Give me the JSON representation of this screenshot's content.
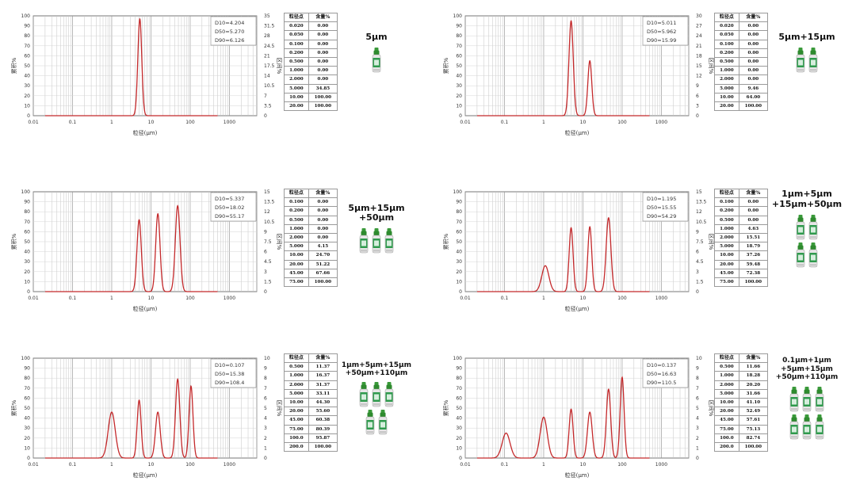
{
  "chart_data": [
    {
      "type": "line",
      "label": "5μm",
      "d_values": [
        "D10=4.204",
        "D50=5.270",
        "D90=6.126"
      ],
      "xlabel": "粒径(μm)",
      "ylabel_left": "累积%",
      "ylabel_right": "区间%",
      "x_scale": "log",
      "xlim": [
        0.01,
        5000
      ],
      "x_ticks": [
        "0.01",
        "0.1",
        "1",
        "10",
        "100",
        "1000"
      ],
      "ylim_left": [
        0,
        100
      ],
      "y_ticks_left": [
        "0",
        "10",
        "20",
        "30",
        "40",
        "50",
        "60",
        "70",
        "80",
        "90",
        "100"
      ],
      "y_ticks_right": [
        "0",
        "3.5",
        "7",
        "10.5",
        "14",
        "17.5",
        "21",
        "24.5",
        "28",
        "31.5",
        "35"
      ],
      "peaks": [
        {
          "center": 5.2,
          "height": 97,
          "width": 0.05
        }
      ],
      "table_header": [
        "粒径点",
        "含量%"
      ],
      "table": [
        [
          "0.020",
          "0.00"
        ],
        [
          "0.050",
          "0.00"
        ],
        [
          "0.100",
          "0.00"
        ],
        [
          "0.200",
          "0.00"
        ],
        [
          "0.500",
          "0.00"
        ],
        [
          "1.000",
          "0.00"
        ],
        [
          "2.000",
          "0.00"
        ],
        [
          "5.000",
          "34.85"
        ],
        [
          "10.00",
          "100.00"
        ],
        [
          "20.00",
          "100.00"
        ]
      ],
      "bottles": 1
    },
    {
      "type": "line",
      "label": "5μm+15μm",
      "d_values": [
        "D10=5.011",
        "D50=5.962",
        "D90=15.99"
      ],
      "xlabel": "粒径(μm)",
      "ylabel_left": "累积%",
      "ylabel_right": "区间%",
      "x_scale": "log",
      "xlim": [
        0.01,
        5000
      ],
      "x_ticks": [
        "0.01",
        "0.1",
        "1",
        "10",
        "100",
        "1000"
      ],
      "ylim_left": [
        0,
        100
      ],
      "y_ticks_left": [
        "0",
        "10",
        "20",
        "30",
        "40",
        "50",
        "60",
        "70",
        "80",
        "90",
        "100"
      ],
      "y_ticks_right": [
        "0",
        "3",
        "6",
        "9",
        "12",
        "15",
        "18",
        "21",
        "24",
        "27",
        "30"
      ],
      "peaks": [
        {
          "center": 5.0,
          "height": 95,
          "width": 0.055
        },
        {
          "center": 15.0,
          "height": 55,
          "width": 0.05
        }
      ],
      "table_header": [
        "粒径点",
        "含量%"
      ],
      "table": [
        [
          "0.020",
          "0.00"
        ],
        [
          "0.050",
          "0.00"
        ],
        [
          "0.100",
          "0.00"
        ],
        [
          "0.200",
          "0.00"
        ],
        [
          "0.500",
          "0.00"
        ],
        [
          "1.000",
          "0.00"
        ],
        [
          "2.000",
          "0.00"
        ],
        [
          "5.000",
          "9.46"
        ],
        [
          "10.00",
          "64.00"
        ],
        [
          "20.00",
          "100.00"
        ]
      ],
      "bottles": 2
    },
    {
      "type": "line",
      "label": "5μm+15μm\n+50μm",
      "d_values": [
        "D10=5.337",
        "D50=18.02",
        "D90=55.17"
      ],
      "xlabel": "粒径(μm)",
      "ylabel_left": "累积%",
      "ylabel_right": "区间%",
      "x_scale": "log",
      "xlim": [
        0.01,
        5000
      ],
      "x_ticks": [
        "0.01",
        "0.1",
        "1",
        "10",
        "100",
        "1000"
      ],
      "ylim_left": [
        0,
        100
      ],
      "y_ticks_left": [
        "0",
        "10",
        "20",
        "30",
        "40",
        "50",
        "60",
        "70",
        "80",
        "90",
        "100"
      ],
      "y_ticks_right": [
        "0",
        "1.5",
        "3",
        "4.5",
        "6",
        "7.5",
        "9",
        "10.5",
        "12",
        "13.5",
        "15"
      ],
      "peaks": [
        {
          "center": 5.0,
          "height": 72,
          "width": 0.055
        },
        {
          "center": 15.0,
          "height": 78,
          "width": 0.055
        },
        {
          "center": 48.0,
          "height": 86,
          "width": 0.06
        }
      ],
      "table_header": [
        "粒径点",
        "含量%"
      ],
      "table": [
        [
          "0.100",
          "0.00"
        ],
        [
          "0.200",
          "0.00"
        ],
        [
          "0.500",
          "0.00"
        ],
        [
          "1.000",
          "0.00"
        ],
        [
          "2.000",
          "0.00"
        ],
        [
          "5.000",
          "4.15"
        ],
        [
          "10.00",
          "24.70"
        ],
        [
          "20.00",
          "51.22"
        ],
        [
          "45.00",
          "67.66"
        ],
        [
          "75.00",
          "100.00"
        ]
      ],
      "bottles": 3
    },
    {
      "type": "line",
      "label": "1μm+5μm\n+15μm+50μm",
      "d_values": [
        "D10=1.195",
        "D50=15.55",
        "D90=54.29"
      ],
      "xlabel": "粒径(μm)",
      "ylabel_left": "累积%",
      "ylabel_right": "区间%",
      "x_scale": "log",
      "xlim": [
        0.01,
        5000
      ],
      "x_ticks": [
        "0.01",
        "0.1",
        "1",
        "10",
        "100",
        "1000"
      ],
      "ylim_left": [
        0,
        100
      ],
      "y_ticks_left": [
        "0",
        "10",
        "20",
        "30",
        "40",
        "50",
        "60",
        "70",
        "80",
        "90",
        "100"
      ],
      "y_ticks_right": [
        "0",
        "1.5",
        "3",
        "4.5",
        "6",
        "7.5",
        "9",
        "10.5",
        "12",
        "13.5",
        "15"
      ],
      "peaks": [
        {
          "center": 1.1,
          "height": 26,
          "width": 0.09
        },
        {
          "center": 5.0,
          "height": 64,
          "width": 0.05
        },
        {
          "center": 15.0,
          "height": 65,
          "width": 0.05
        },
        {
          "center": 45.0,
          "height": 74,
          "width": 0.06
        }
      ],
      "table_header": [
        "粒径点",
        "含量%"
      ],
      "table": [
        [
          "0.100",
          "0.00"
        ],
        [
          "0.200",
          "0.00"
        ],
        [
          "0.500",
          "0.00"
        ],
        [
          "1.000",
          "4.63"
        ],
        [
          "2.000",
          "15.51"
        ],
        [
          "5.000",
          "18.79"
        ],
        [
          "10.00",
          "37.26"
        ],
        [
          "20.00",
          "59.48"
        ],
        [
          "45.00",
          "72.38"
        ],
        [
          "75.00",
          "100.00"
        ]
      ],
      "bottles": 4
    },
    {
      "type": "line",
      "label": "1μm+5μm+15μm\n+50μm+110μm",
      "d_values": [
        "D10=0.107",
        "D50=15.38",
        "D90=108.4"
      ],
      "xlabel": "粒径(μm)",
      "ylabel_left": "累积%",
      "ylabel_right": "区间%",
      "x_scale": "log",
      "xlim": [
        0.01,
        5000
      ],
      "x_ticks": [
        "0.01",
        "0.1",
        "1",
        "10",
        "100",
        "1000"
      ],
      "ylim_left": [
        0,
        100
      ],
      "y_ticks_left": [
        "0",
        "10",
        "20",
        "30",
        "40",
        "50",
        "60",
        "70",
        "80",
        "90",
        "100"
      ],
      "y_ticks_right": [
        "0",
        "1",
        "2",
        "3",
        "4",
        "5",
        "6",
        "7",
        "8",
        "9",
        "10"
      ],
      "peaks": [
        {
          "center": 1.0,
          "height": 46,
          "width": 0.09
        },
        {
          "center": 5.0,
          "height": 58,
          "width": 0.05
        },
        {
          "center": 15.0,
          "height": 46,
          "width": 0.06
        },
        {
          "center": 48.0,
          "height": 79,
          "width": 0.055
        },
        {
          "center": 105.0,
          "height": 72,
          "width": 0.05
        }
      ],
      "table_header": [
        "粒径点",
        "含量%"
      ],
      "table": [
        [
          "0.500",
          "11.37"
        ],
        [
          "1.000",
          "16.37"
        ],
        [
          "2.000",
          "31.37"
        ],
        [
          "5.000",
          "33.11"
        ],
        [
          "10.00",
          "44.30"
        ],
        [
          "20.00",
          "55.60"
        ],
        [
          "45.00",
          "60.38"
        ],
        [
          "75.00",
          "80.39"
        ],
        [
          "100.0",
          "95.87"
        ],
        [
          "200.0",
          "100.00"
        ]
      ],
      "bottles": 5
    },
    {
      "type": "line",
      "label": "0.1μm+1μm\n+5μm+15μm\n+50μm+110μm",
      "d_values": [
        "D10=0.137",
        "D50=16.63",
        "D90=110.5"
      ],
      "xlabel": "粒径(μm)",
      "ylabel_left": "累积%",
      "ylabel_right": "区间%",
      "x_scale": "log",
      "xlim": [
        0.01,
        5000
      ],
      "x_ticks": [
        "0.01",
        "0.1",
        "1",
        "10",
        "100",
        "1000"
      ],
      "ylim_left": [
        0,
        100
      ],
      "y_ticks_left": [
        "0",
        "10",
        "20",
        "30",
        "40",
        "50",
        "60",
        "70",
        "80",
        "90",
        "100"
      ],
      "y_ticks_right": [
        "0",
        "1",
        "2",
        "3",
        "4",
        "5",
        "6",
        "7",
        "8",
        "9",
        "10"
      ],
      "peaks": [
        {
          "center": 0.11,
          "height": 25,
          "width": 0.1
        },
        {
          "center": 1.0,
          "height": 41,
          "width": 0.09
        },
        {
          "center": 5.0,
          "height": 49,
          "width": 0.05
        },
        {
          "center": 15.0,
          "height": 46,
          "width": 0.06
        },
        {
          "center": 45.0,
          "height": 69,
          "width": 0.055
        },
        {
          "center": 100.0,
          "height": 81,
          "width": 0.05
        }
      ],
      "table_header": [
        "粒径点",
        "含量%"
      ],
      "table": [
        [
          "0.500",
          "11.66"
        ],
        [
          "1.000",
          "18.28"
        ],
        [
          "2.000",
          "20.20"
        ],
        [
          "5.000",
          "31.66"
        ],
        [
          "10.00",
          "41.10"
        ],
        [
          "20.00",
          "52.49"
        ],
        [
          "45.00",
          "57.61"
        ],
        [
          "75.00",
          "75.13"
        ],
        [
          "100.0",
          "82.74"
        ],
        [
          "200.0",
          "100.00"
        ]
      ],
      "bottles": 6
    }
  ]
}
